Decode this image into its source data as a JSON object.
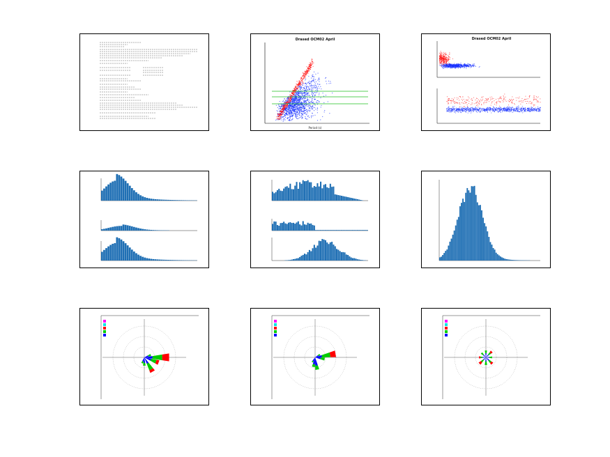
{
  "thumbnails": [
    {
      "id": 1,
      "kind": "text-page"
    },
    {
      "id": 2,
      "kind": "scatter",
      "title": "Drased OCM02 April",
      "xlabel": "Period (s)",
      "colors": {
        "blue": "#1a33ff",
        "red": "#ff1a1a",
        "green": "#1fbf1f"
      }
    },
    {
      "id": 3,
      "kind": "scatter-pair",
      "title": "Drased OCM02 April",
      "colors": {
        "blue": "#1a33ff",
        "red": "#ff1a1a"
      }
    },
    {
      "id": 4,
      "kind": "histogram-stack",
      "colors": {
        "bar": "#1f6fb4"
      }
    },
    {
      "id": 5,
      "kind": "histogram-stack",
      "colors": {
        "bar": "#1f6fb4"
      }
    },
    {
      "id": 6,
      "kind": "histogram",
      "colors": {
        "bar": "#1f6fb4"
      }
    },
    {
      "id": 7,
      "kind": "wind-rose"
    },
    {
      "id": 8,
      "kind": "wind-rose"
    },
    {
      "id": 9,
      "kind": "wind-rose"
    }
  ],
  "rose_legend_colors": [
    "#ff00ff",
    "#00e5e5",
    "#ff0000",
    "#00cc00",
    "#0000ff"
  ]
}
